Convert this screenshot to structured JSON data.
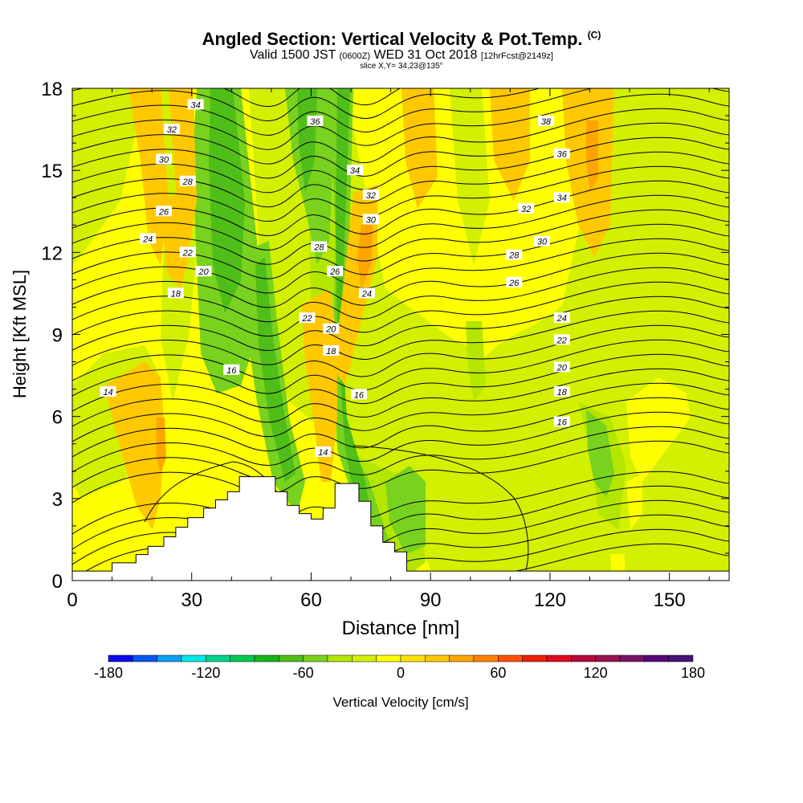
{
  "title": {
    "main": "Angled Section: Vertical Velocity & Pot.Temp.",
    "copyright": "(C)",
    "valid_prefix": "Valid 1500 JST",
    "valid_zulu": "(0600Z)",
    "valid_date": "WED 31 Oct 2018",
    "forecast": "[12hrFcst@2149z]",
    "slice": "slice X,Y= 34,23@135°"
  },
  "chart_data": {
    "type": "heatmap",
    "xlabel": "Distance [nm]",
    "ylabel": "Height [Kft MSL]",
    "xlim": [
      0,
      165
    ],
    "ylim": [
      0,
      18
    ],
    "x_ticks": [
      0,
      30,
      60,
      90,
      120,
      150
    ],
    "y_ticks": [
      0,
      3,
      6,
      9,
      12,
      15,
      18
    ],
    "colorbar": {
      "label": "Vertical Velocity [cm/s]",
      "ticks": [
        -180,
        -120,
        -60,
        0,
        60,
        120,
        180
      ],
      "bins": [
        -180,
        -165,
        -150,
        -135,
        -120,
        -105,
        -90,
        -75,
        -60,
        -45,
        -30,
        -15,
        0,
        15,
        30,
        45,
        60,
        75,
        90,
        105,
        120,
        135,
        150,
        165,
        180
      ],
      "colors": [
        "#0a0af0",
        "#0a55f0",
        "#0aa0f0",
        "#00e6e6",
        "#00d28c",
        "#00c850",
        "#18b418",
        "#50be18",
        "#78d21e",
        "#b4e600",
        "#d2f000",
        "#ffff00",
        "#ffe100",
        "#ffc800",
        "#ffa500",
        "#ff8200",
        "#ff5000",
        "#f01e00",
        "#dc0a1e",
        "#b40a3c",
        "#961450",
        "#781464",
        "#5a0a78",
        "#461478"
      ]
    },
    "terrain": {
      "x": [
        0,
        10,
        10,
        16,
        16,
        19,
        19,
        23,
        23,
        26,
        26,
        29,
        29,
        33,
        33,
        36,
        36,
        39,
        39,
        42,
        42,
        51,
        51,
        54,
        54,
        57,
        57,
        60,
        60,
        63,
        63,
        66,
        66,
        72,
        72,
        75,
        75,
        78,
        78,
        81,
        81,
        84,
        84,
        165
      ],
      "y": [
        0.35,
        0.35,
        0.65,
        0.65,
        0.95,
        0.95,
        1.25,
        1.25,
        1.6,
        1.6,
        1.95,
        1.95,
        2.3,
        2.3,
        2.65,
        2.65,
        2.95,
        2.95,
        3.25,
        3.25,
        3.8,
        3.8,
        3.25,
        3.25,
        2.75,
        2.75,
        2.45,
        2.45,
        2.25,
        2.25,
        2.65,
        2.65,
        3.55,
        3.55,
        2.9,
        2.9,
        2.0,
        2.0,
        1.4,
        1.4,
        1.05,
        1.05,
        0.35,
        0.35
      ]
    },
    "theta_labels": [
      {
        "text": "34",
        "x": 31,
        "y": 17.4
      },
      {
        "text": "32",
        "x": 25,
        "y": 16.5
      },
      {
        "text": "30",
        "x": 23,
        "y": 15.4
      },
      {
        "text": "28",
        "x": 29,
        "y": 14.6
      },
      {
        "text": "26",
        "x": 23,
        "y": 13.5
      },
      {
        "text": "24",
        "x": 19,
        "y": 12.5
      },
      {
        "text": "22",
        "x": 29,
        "y": 12.0
      },
      {
        "text": "20",
        "x": 33,
        "y": 11.3
      },
      {
        "text": "18",
        "x": 26,
        "y": 10.5
      },
      {
        "text": "16",
        "x": 40,
        "y": 7.7
      },
      {
        "text": "14",
        "x": 9,
        "y": 6.9
      },
      {
        "text": "36",
        "x": 61,
        "y": 16.8
      },
      {
        "text": "34",
        "x": 71,
        "y": 15.0
      },
      {
        "text": "32",
        "x": 75,
        "y": 14.1
      },
      {
        "text": "30",
        "x": 75,
        "y": 13.2
      },
      {
        "text": "28",
        "x": 62,
        "y": 12.2
      },
      {
        "text": "26",
        "x": 66,
        "y": 11.3
      },
      {
        "text": "24",
        "x": 74,
        "y": 10.5
      },
      {
        "text": "22",
        "x": 59,
        "y": 9.6
      },
      {
        "text": "20",
        "x": 65,
        "y": 9.2
      },
      {
        "text": "18",
        "x": 65,
        "y": 8.4
      },
      {
        "text": "16",
        "x": 72,
        "y": 6.8
      },
      {
        "text": "14",
        "x": 63,
        "y": 4.7
      },
      {
        "text": "38",
        "x": 119,
        "y": 16.8
      },
      {
        "text": "36",
        "x": 123,
        "y": 15.6
      },
      {
        "text": "34",
        "x": 123,
        "y": 14.0
      },
      {
        "text": "32",
        "x": 114,
        "y": 13.6
      },
      {
        "text": "30",
        "x": 118,
        "y": 12.4
      },
      {
        "text": "28",
        "x": 111,
        "y": 11.9
      },
      {
        "text": "26",
        "x": 111,
        "y": 10.9
      },
      {
        "text": "24",
        "x": 123,
        "y": 9.6
      },
      {
        "text": "22",
        "x": 123,
        "y": 8.8
      },
      {
        "text": "20",
        "x": 123,
        "y": 7.8
      },
      {
        "text": "18",
        "x": 123,
        "y": 6.9
      },
      {
        "text": "16",
        "x": 123,
        "y": 5.8
      }
    ]
  }
}
